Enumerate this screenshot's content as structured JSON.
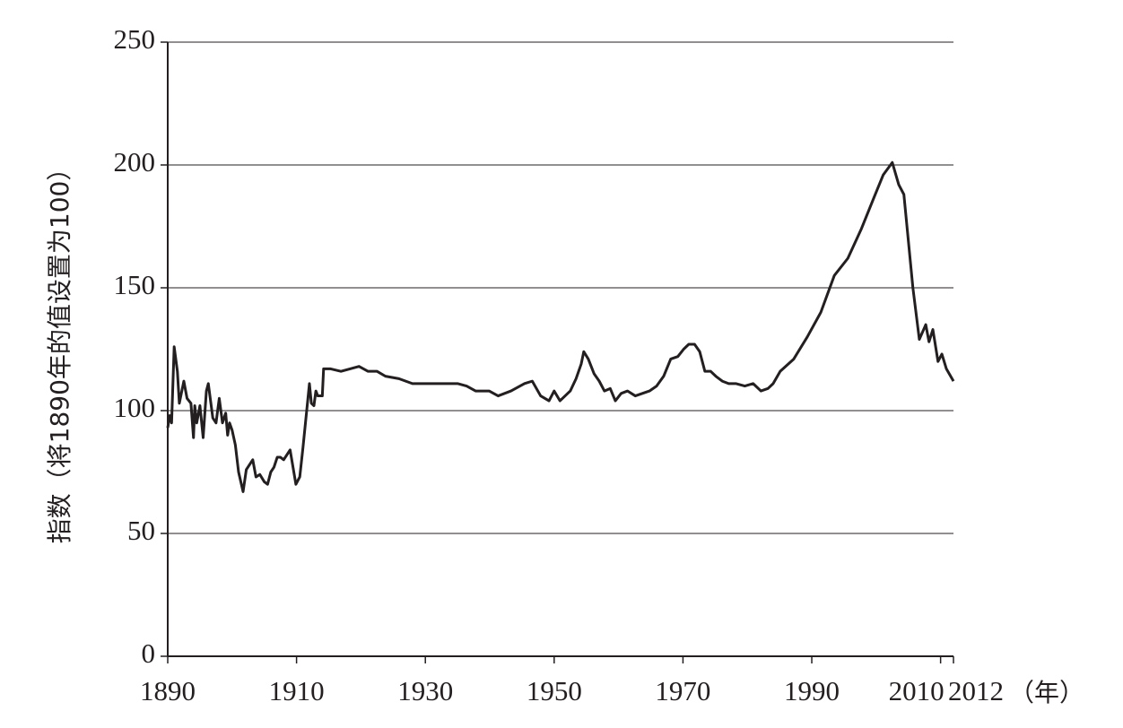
{
  "chart_data": {
    "type": "line",
    "y_label": "指数（将1890年的值设置为100）",
    "x_label": "（年）",
    "xlim": [
      1890,
      2012
    ],
    "xticks": [
      1890,
      1910,
      1930,
      1950,
      1970,
      1990,
      2010,
      2012
    ],
    "ylim": [
      0,
      250
    ],
    "yticks": [
      0,
      50,
      100,
      150,
      200,
      250
    ],
    "grid": true,
    "x": [
      1890,
      1890.3,
      1890.6,
      1891,
      1891.5,
      1891.8,
      1892.5,
      1893,
      1893.6,
      1894,
      1894.2,
      1894.5,
      1895,
      1895.5,
      1896,
      1896.3,
      1897,
      1897.5,
      1898,
      1898.5,
      1899,
      1899.3,
      1899.6,
      1900,
      1900.5,
      1901,
      1901.7,
      1902.2,
      1902.7,
      1903.2,
      1903.7,
      1904.3,
      1905,
      1905.5,
      1906,
      1906.5,
      1907,
      1907.5,
      1908,
      1909,
      1909.9,
      1910.5,
      1911,
      1912,
      1912.3,
      1912.7,
      1913,
      1913.3,
      1914,
      1914.2,
      1915.3,
      1916.9,
      1918.3,
      1919.7,
      1921.1,
      1922.5,
      1923.8,
      1925.9,
      1928,
      1930.1,
      1932.2,
      1933.6,
      1935,
      1936.4,
      1937.8,
      1939.9,
      1941.3,
      1943.3,
      1945.4,
      1946.6,
      1947.9,
      1949.2,
      1950,
      1950.9,
      1951.7,
      1952.5,
      1953.4,
      1954.2,
      1954.6,
      1955.3,
      1956.2,
      1957,
      1957.8,
      1958.7,
      1959.5,
      1960.4,
      1961.4,
      1962.6,
      1963.7,
      1964.8,
      1965.9,
      1967,
      1968.1,
      1969.2,
      1970.1,
      1970.9,
      1971.8,
      1972.6,
      1973.4,
      1974.3,
      1975.1,
      1976.1,
      1977.1,
      1978.2,
      1979.6,
      1980.9,
      1982.1,
      1983.2,
      1984,
      1985.1,
      1987.2,
      1989.3,
      1991.4,
      1993.5,
      1995.6,
      1997.7,
      1999.7,
      2001.1,
      2002.5,
      2003.5,
      2004.3,
      2005.7,
      2006.7,
      2007.7,
      2008.2,
      2008.8,
      2009.6,
      2010.2,
      2010.9,
      2012
    ],
    "series": [
      {
        "color": "#231f20",
        "values": [
          93,
          98,
          95,
          126,
          116,
          103,
          112,
          105,
          103,
          89,
          102,
          95,
          102,
          89,
          108,
          111,
          97,
          95,
          105,
          95,
          99,
          90,
          95,
          92,
          86,
          75,
          67,
          76,
          78,
          80,
          73,
          74,
          71,
          70,
          75,
          77,
          81,
          81,
          80,
          84,
          70,
          73,
          85,
          111,
          103,
          102,
          108,
          106,
          106,
          117,
          117,
          116,
          117,
          118,
          116,
          116,
          114,
          113,
          111,
          111,
          111,
          111,
          111,
          110,
          108,
          108,
          106,
          108,
          111,
          112,
          106,
          104,
          108,
          104,
          106,
          108,
          113,
          119,
          124,
          121,
          115,
          112,
          108,
          109,
          104,
          107,
          108,
          106,
          107,
          108,
          110,
          114,
          121,
          122,
          125,
          127,
          127,
          124,
          116,
          116,
          114,
          112,
          111,
          111,
          110,
          111,
          108,
          109,
          111,
          116,
          121,
          130,
          140,
          155,
          162,
          174,
          187,
          196,
          201,
          192,
          188,
          150,
          129,
          135,
          128,
          133,
          120,
          123,
          117,
          112
        ]
      }
    ]
  }
}
